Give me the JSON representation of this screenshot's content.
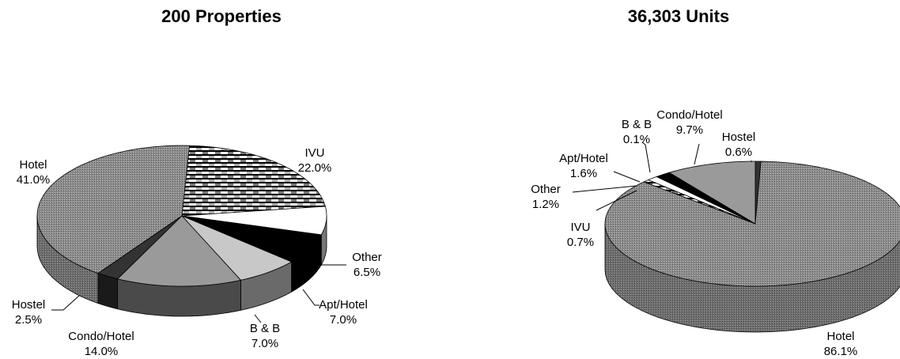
{
  "chart_data": [
    {
      "type": "pie",
      "title": "200 Properties",
      "slices": [
        {
          "label": "IVU",
          "value": 22.0,
          "value_label": "22.0%",
          "pattern": "checker"
        },
        {
          "label": "Other",
          "value": 6.5,
          "value_label": "6.5%",
          "pattern": "white"
        },
        {
          "label": "Apt/Hotel",
          "value": 7.0,
          "value_label": "7.0%",
          "pattern": "black"
        },
        {
          "label": "B & B",
          "value": 7.0,
          "value_label": "7.0%",
          "pattern": "lightgray"
        },
        {
          "label": "Condo/Hotel",
          "value": 14.0,
          "value_label": "14.0%",
          "pattern": "gray"
        },
        {
          "label": "Hostel",
          "value": 2.5,
          "value_label": "2.5%",
          "pattern": "darkgray"
        },
        {
          "label": "Hotel",
          "value": 41.0,
          "value_label": "41.0%",
          "pattern": "dots"
        }
      ]
    },
    {
      "type": "pie",
      "title": "36,303 Units",
      "slices": [
        {
          "label": "Hostel",
          "value": 0.6,
          "value_label": "0.6%",
          "pattern": "darkgray"
        },
        {
          "label": "Hotel",
          "value": 86.1,
          "value_label": "86.1%",
          "pattern": "dots"
        },
        {
          "label": "IVU",
          "value": 0.7,
          "value_label": "0.7%",
          "pattern": "checker"
        },
        {
          "label": "Other",
          "value": 1.2,
          "value_label": "1.2%",
          "pattern": "white"
        },
        {
          "label": "Apt/Hotel",
          "value": 1.6,
          "value_label": "1.6%",
          "pattern": "black"
        },
        {
          "label": "B & B",
          "value": 0.1,
          "value_label": "0.1%",
          "pattern": "lightgray"
        },
        {
          "label": "Condo/Hotel",
          "value": 9.7,
          "value_label": "9.7%",
          "pattern": "gray"
        }
      ]
    }
  ],
  "colors": {
    "hotel": "#8c8c8c",
    "ivu_dark": "#000000",
    "ivu_light": "#ffffff",
    "other": "#ffffff",
    "apt_hotel": "#000000",
    "bnb": "#c8c8c8",
    "condo_hotel": "#9a9a9a",
    "hostel": "#333333",
    "outline": "#000000"
  }
}
